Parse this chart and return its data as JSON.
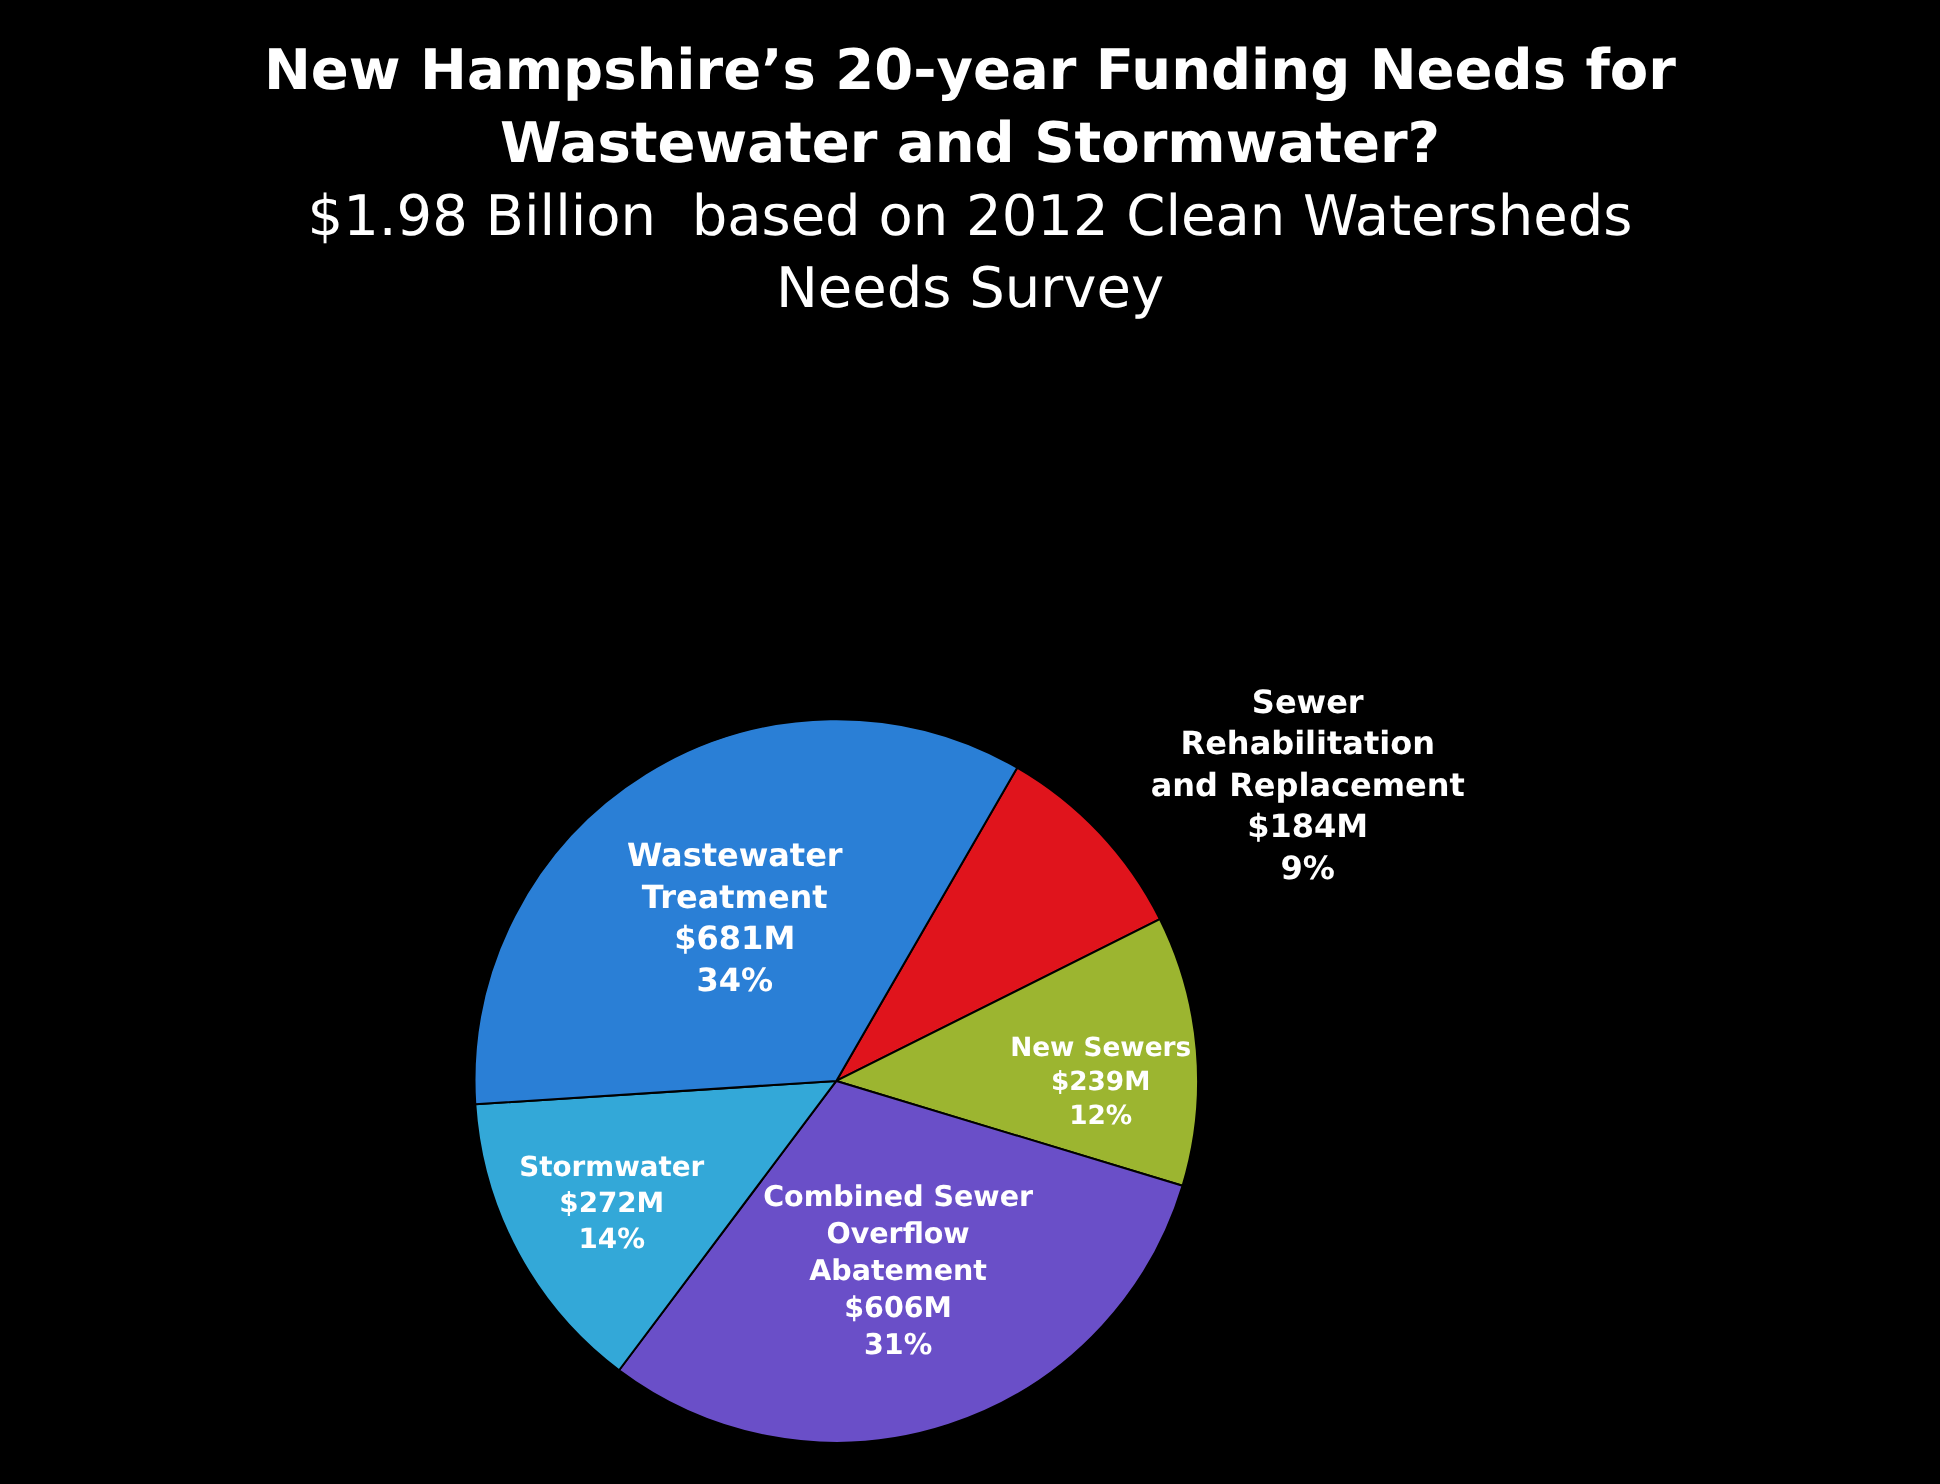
{
  "chart_data": {
    "type": "pie",
    "title": "New Hampshire’s 20-year Funding Needs for Wastewater and Stormwater?",
    "subtitle": "$1.98 Billion  based on 2012 Clean Watersheds Needs Survey",
    "categories": [
      "Sewer Rehabilitation and Replacement",
      "New Sewers",
      "Combined Sewer Overflow Abatement",
      "Stormwater",
      "Wastewater Treatment"
    ],
    "values": [
      184,
      239,
      606,
      272,
      681
    ],
    "annotations": [
      "9%",
      "12%",
      "31%",
      "14%",
      "34%"
    ],
    "value_labels": [
      "$184M",
      "$239M",
      "$606M",
      "$272M",
      "$681M"
    ],
    "colors": [
      "#e0141c",
      "#9cb530",
      "#6a4fc8",
      "#33a8d8",
      "#2a7fd6"
    ]
  }
}
